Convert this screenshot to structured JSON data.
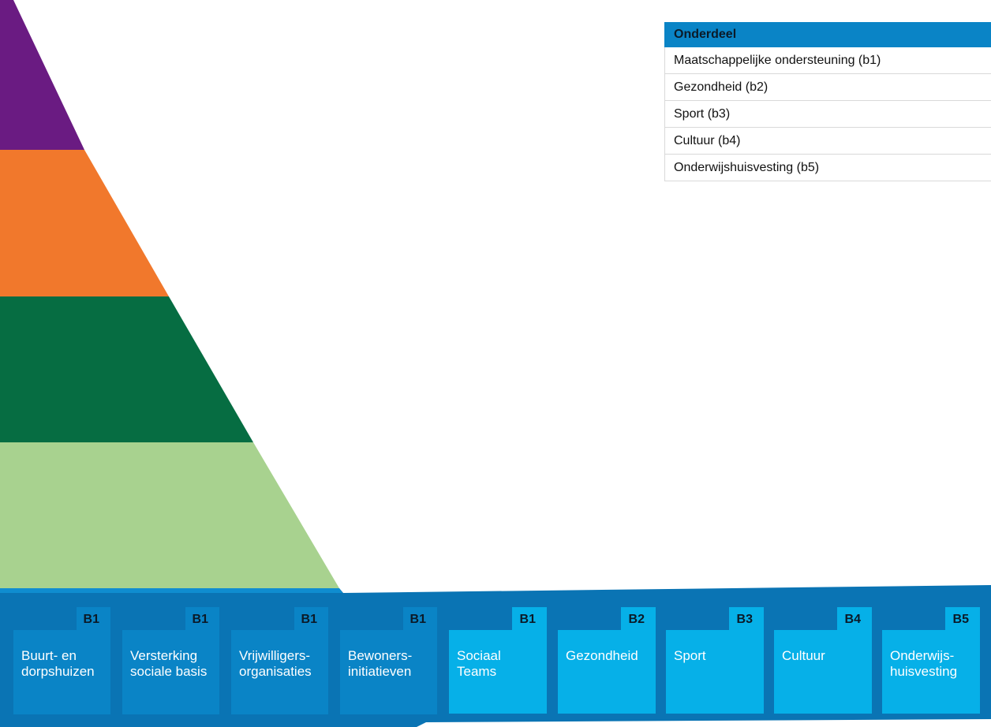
{
  "pyramid": {
    "layers": [
      {
        "name": "top",
        "color": "#6a1b82"
      },
      {
        "name": "second",
        "color": "#f1782c"
      },
      {
        "name": "third",
        "color": "#066d42"
      },
      {
        "name": "fourth",
        "color": "#a8d28f"
      }
    ],
    "base_colors": {
      "band": "#0a74b4",
      "band_accent": "#0f8dd0"
    }
  },
  "legend": {
    "header": "Onderdeel",
    "rows": [
      "Maatschappelijke ondersteuning (b1)",
      "Gezondheid (b2)",
      "Sport (b3)",
      "Cultuur (b4)",
      "Onderwijshuisvesting (b5)"
    ]
  },
  "tiles": [
    {
      "code": "B1",
      "line1": "Buurt- en",
      "line2": "dorpshuizen",
      "style": "dark"
    },
    {
      "code": "B1",
      "line1": "Versterking",
      "line2": "sociale basis",
      "style": "dark"
    },
    {
      "code": "B1",
      "line1": "Vrijwilligers-",
      "line2": "organisaties",
      "style": "dark"
    },
    {
      "code": "B1",
      "line1": "Bewoners-",
      "line2": "initiatieven",
      "style": "dark"
    },
    {
      "code": "B1",
      "line1": "Sociaal",
      "line2": "Teams",
      "style": "light"
    },
    {
      "code": "B2",
      "line1": "Gezondheid",
      "line2": "",
      "style": "light"
    },
    {
      "code": "B3",
      "line1": "Sport",
      "line2": "",
      "style": "light"
    },
    {
      "code": "B4",
      "line1": "Cultuur",
      "line2": "",
      "style": "light"
    },
    {
      "code": "B5",
      "line1": "Onderwijs-",
      "line2": "huisvesting",
      "style": "light"
    }
  ]
}
